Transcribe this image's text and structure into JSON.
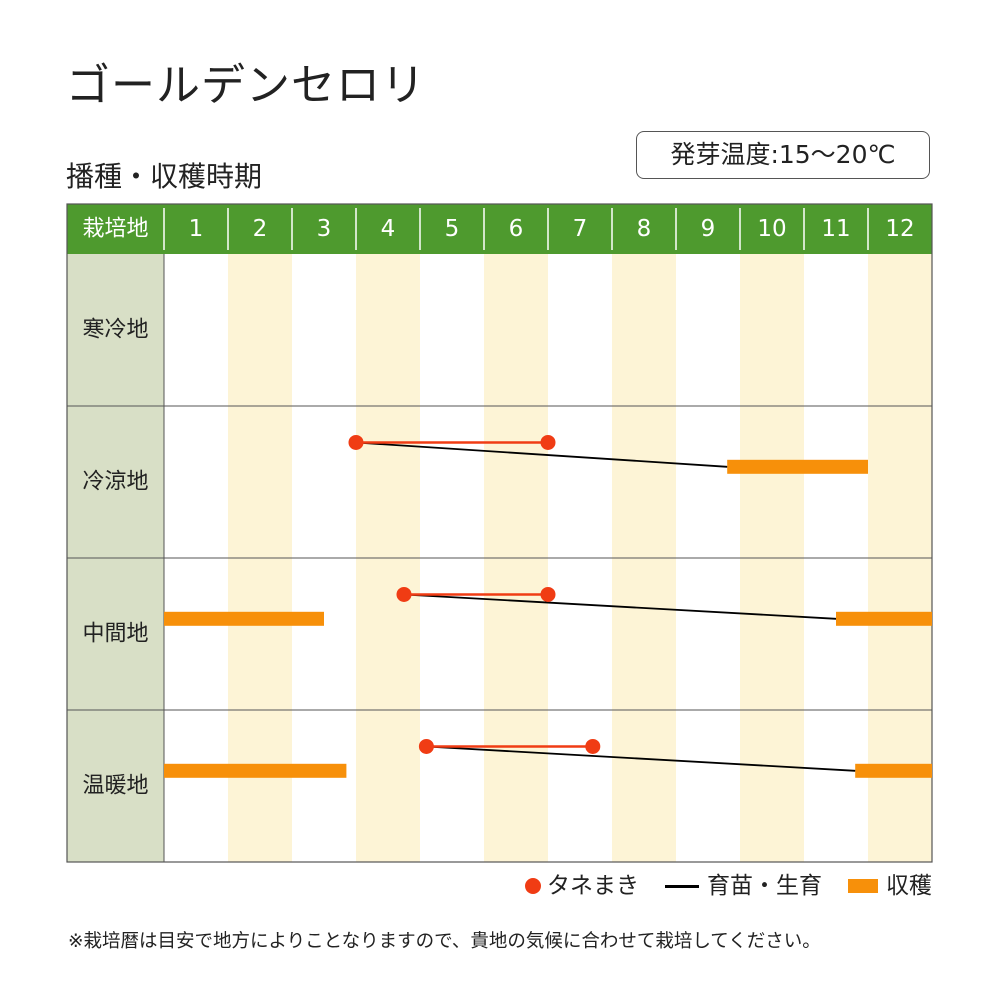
{
  "title": "ゴールデンセロリ",
  "subtitle": "播種・収穫時期",
  "temperature": "発芽温度:15〜20℃",
  "colors": {
    "header_green": "#4e9a2e",
    "row_label_bg": "#d8dfc6",
    "stripe": "#fdf4d6",
    "sowing": "#f03c14",
    "growing": "#000000",
    "harvest": "#f7900a",
    "grid": "#555555"
  },
  "legend": {
    "sowing": "タネまき",
    "growing": "育苗・生育",
    "harvest": "収穫"
  },
  "note": "※栽培暦は目安で地方によりことなりますので、貴地の気候に合わせて栽培してください。",
  "chart_data": {
    "type": "gantt",
    "header_label": "栽培地",
    "months": [
      "1",
      "2",
      "3",
      "4",
      "5",
      "6",
      "7",
      "8",
      "9",
      "10",
      "11",
      "12"
    ],
    "x_unit": "month",
    "rows": [
      {
        "name": "寒冷地",
        "sowing": null,
        "growing": null,
        "harvest": []
      },
      {
        "name": "冷涼地",
        "sowing": [
          4.0,
          7.0
        ],
        "growing": [
          4.0,
          9.8
        ],
        "harvest": [
          [
            9.8,
            12.0
          ]
        ]
      },
      {
        "name": "中間地",
        "sowing": [
          4.75,
          7.0
        ],
        "growing": [
          4.75,
          11.5
        ],
        "harvest": [
          [
            1.0,
            3.5
          ],
          [
            11.5,
            13.0
          ]
        ]
      },
      {
        "name": "温暖地",
        "sowing": [
          5.1,
          7.7
        ],
        "growing": [
          5.1,
          11.8
        ],
        "harvest": [
          [
            1.0,
            3.85
          ],
          [
            11.8,
            13.0
          ]
        ]
      }
    ]
  }
}
